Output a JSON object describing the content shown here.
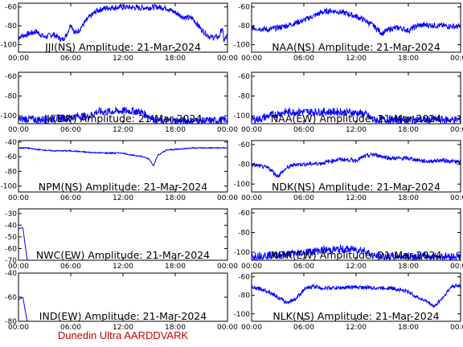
{
  "footer": "Dunedin Ultra AARDDVARK",
  "colors": {
    "trace": "#0000ff",
    "axis": "#000000",
    "footer": "#cc0000"
  },
  "chart_data": [
    {
      "type": "line",
      "title": "JJI(NS) Amplitude: 21-Mar-2024",
      "x_ticks": [
        "00:00",
        "06:00",
        "12:00",
        "18:00",
        "00:00"
      ],
      "y_ticks": [
        "-100",
        "-80",
        "-60"
      ],
      "y_tick_values": [
        -100,
        -80,
        -60
      ],
      "ylim": [
        -108,
        -56
      ],
      "xlim": [
        0,
        24
      ],
      "x": [
        0,
        1,
        2,
        3,
        4,
        5,
        5.5,
        6,
        6.5,
        7,
        8,
        9,
        10,
        12,
        14,
        16,
        17,
        18,
        19,
        20,
        21,
        22,
        23,
        23.4,
        23.6,
        24
      ],
      "y": [
        -92,
        -89,
        -86,
        -92,
        -89,
        -95,
        -90,
        -78,
        -88,
        -84,
        -72,
        -64,
        -61,
        -60,
        -61,
        -60,
        -61,
        -66,
        -71,
        -72,
        -84,
        -92,
        -92,
        -82,
        -96,
        -90
      ],
      "noise": 3
    },
    {
      "type": "line",
      "title": "NAA(NS) Amplitude: 21-Mar-2024",
      "x_ticks": [
        "00:00",
        "06:00",
        "12:00",
        "18:00",
        "00:00"
      ],
      "y_ticks": [
        "-100",
        "-80",
        "-60"
      ],
      "y_tick_values": [
        -100,
        -80,
        -60
      ],
      "ylim": [
        -108,
        -56
      ],
      "xlim": [
        0,
        24
      ],
      "x": [
        0,
        2,
        4,
        6,
        7,
        8,
        9,
        10,
        11,
        12,
        13,
        14,
        15,
        16,
        17,
        18,
        19,
        20,
        22,
        24
      ],
      "y": [
        -82,
        -84,
        -80,
        -74,
        -70,
        -66,
        -64,
        -65,
        -67,
        -70,
        -74,
        -80,
        -88,
        -83,
        -82,
        -85,
        -80,
        -79,
        -80,
        -81
      ],
      "noise": 3
    },
    {
      "type": "line",
      "title": "JJI(EW) Amplitude: 21-Mar-2024",
      "x_ticks": [
        "00:00",
        "06:00",
        "12:00",
        "18:00",
        "00:00"
      ],
      "y_ticks": [
        "-100",
        "-80",
        "-60"
      ],
      "y_tick_values": [
        -100,
        -80,
        -60
      ],
      "ylim": [
        -108,
        -56
      ],
      "xlim": [
        0,
        24
      ],
      "x": [
        0,
        1,
        2,
        4,
        6,
        7,
        8,
        9,
        10,
        12,
        13,
        14,
        16,
        18,
        20,
        22,
        24
      ],
      "y": [
        -104,
        -103,
        -104,
        -103,
        -102,
        -100,
        -101,
        -96,
        -96,
        -95,
        -95,
        -96,
        -105,
        -105,
        -105,
        -105,
        -104
      ],
      "noise": 4
    },
    {
      "type": "line",
      "title": "NAA(EW) Amplitude: 21-Mar-2024",
      "x_ticks": [
        "00:00",
        "06:00",
        "12:00",
        "18:00",
        "00:00"
      ],
      "y_ticks": [
        "-100",
        "-80",
        "-60"
      ],
      "y_tick_values": [
        -100,
        -80,
        -60
      ],
      "ylim": [
        -108,
        -56
      ],
      "xlim": [
        0,
        24
      ],
      "x": [
        0,
        1,
        2,
        4,
        6,
        8,
        10,
        12,
        13,
        14,
        16,
        18,
        20,
        22,
        24
      ],
      "y": [
        -104,
        -103,
        -100,
        -96,
        -96,
        -96,
        -96,
        -97,
        -98,
        -104,
        -104,
        -104,
        -104,
        -104,
        -104
      ],
      "noise": 4
    },
    {
      "type": "line",
      "title": "NPM(NS) Amplitude: 21-Mar-2024",
      "x_ticks": [
        "00:00",
        "06:00",
        "12:00",
        "18:00",
        "00:00"
      ],
      "y_ticks": [
        "-100",
        "-80",
        "-60",
        "-40"
      ],
      "y_tick_values": [
        -100,
        -80,
        -60,
        -40
      ],
      "ylim": [
        -108,
        -38
      ],
      "xlim": [
        0,
        24
      ],
      "x": [
        0,
        1,
        2,
        4,
        6,
        8,
        10,
        12,
        13,
        14,
        15,
        15.5,
        16,
        17,
        18,
        19,
        20,
        22,
        24
      ],
      "y": [
        -48,
        -48,
        -50,
        -52,
        -52,
        -54,
        -55,
        -55,
        -58,
        -59,
        -63,
        -72,
        -58,
        -51,
        -50,
        -49,
        -48,
        -48,
        -48
      ],
      "noise": 0.8
    },
    {
      "type": "line",
      "title": "NDK(NS) Amplitude: 21-Mar-2024",
      "x_ticks": [
        "00:00",
        "06:00",
        "12:00",
        "18:00",
        "00:00"
      ],
      "y_ticks": [
        "-100",
        "-80",
        "-60"
      ],
      "y_tick_values": [
        -100,
        -80,
        -60
      ],
      "ylim": [
        -108,
        -56
      ],
      "xlim": [
        0,
        24
      ],
      "x": [
        0,
        1,
        2,
        3,
        4,
        5,
        6,
        8,
        10,
        12,
        13,
        14,
        16,
        18,
        20,
        22,
        24
      ],
      "y": [
        -80,
        -82,
        -84,
        -92,
        -84,
        -80,
        -80,
        -79,
        -75,
        -76,
        -72,
        -70,
        -74,
        -74,
        -77,
        -76,
        -78
      ],
      "noise": 2
    },
    {
      "type": "line",
      "title": "NWC(EW) Amplitude: 21-Mar-2024",
      "x_ticks": [
        "00:00",
        "06:00",
        "12:00",
        "18:00",
        "00:00"
      ],
      "y_ticks": [
        "-70",
        "-60",
        "-50",
        "-40",
        "-30"
      ],
      "y_tick_values": [
        -70,
        -60,
        -50,
        -40,
        -30
      ],
      "ylim": [
        -70,
        -26
      ],
      "xlim": [
        0,
        24
      ],
      "x": [
        0,
        0.5,
        1,
        24
      ],
      "y": [
        -43,
        -42,
        -70,
        -70
      ],
      "noise": 0
    },
    {
      "type": "line",
      "title": "NDK(EW) Amplitude: 21-Mar-2024",
      "x_ticks": [
        "00:00",
        "06:00",
        "12:00",
        "18:00",
        "00:00"
      ],
      "y_ticks": [
        "-100",
        "-80",
        "-60"
      ],
      "y_tick_values": [
        -100,
        -80,
        -60
      ],
      "ylim": [
        -108,
        -56
      ],
      "xlim": [
        0,
        24
      ],
      "x": [
        0,
        1,
        2,
        4,
        6,
        8,
        10,
        12,
        13,
        14,
        16,
        18,
        20,
        22,
        24
      ],
      "y": [
        -104,
        -103,
        -103,
        -102,
        -100,
        -98,
        -97,
        -97,
        -98,
        -104,
        -104,
        -104,
        -104,
        -104,
        -104
      ],
      "noise": 4
    },
    {
      "type": "line",
      "title": "IND(EW) Amplitude: 21-Mar-2024",
      "x_ticks": [
        "00:00",
        "06:00",
        "12:00",
        "18:00",
        "00:00"
      ],
      "y_ticks": [
        "-80",
        "-60",
        "-40"
      ],
      "y_tick_values": [
        -80,
        -60,
        -40
      ],
      "ylim": [
        -80,
        -40
      ],
      "xlim": [
        0,
        24
      ],
      "x": [
        0,
        0.5,
        1,
        24
      ],
      "y": [
        -62,
        -60,
        -80,
        -80
      ],
      "noise": 0
    },
    {
      "type": "line",
      "title": "NLK(NS) Amplitude: 21-Mar-2024",
      "x_ticks": [
        "00:00",
        "06:00",
        "12:00",
        "18:00",
        "00:00"
      ],
      "y_ticks": [
        "-100",
        "-80",
        "-60"
      ],
      "y_tick_values": [
        -100,
        -80,
        -60
      ],
      "ylim": [
        -108,
        -56
      ],
      "xlim": [
        0,
        24
      ],
      "x": [
        0,
        1,
        2,
        3,
        4,
        5,
        6,
        7,
        8,
        10,
        12,
        14,
        16,
        18,
        19,
        20,
        21,
        22,
        23,
        24
      ],
      "y": [
        -72,
        -73,
        -76,
        -82,
        -88,
        -84,
        -74,
        -70,
        -72,
        -72,
        -71,
        -72,
        -72,
        -76,
        -82,
        -86,
        -92,
        -82,
        -70,
        -70
      ],
      "noise": 2
    }
  ]
}
